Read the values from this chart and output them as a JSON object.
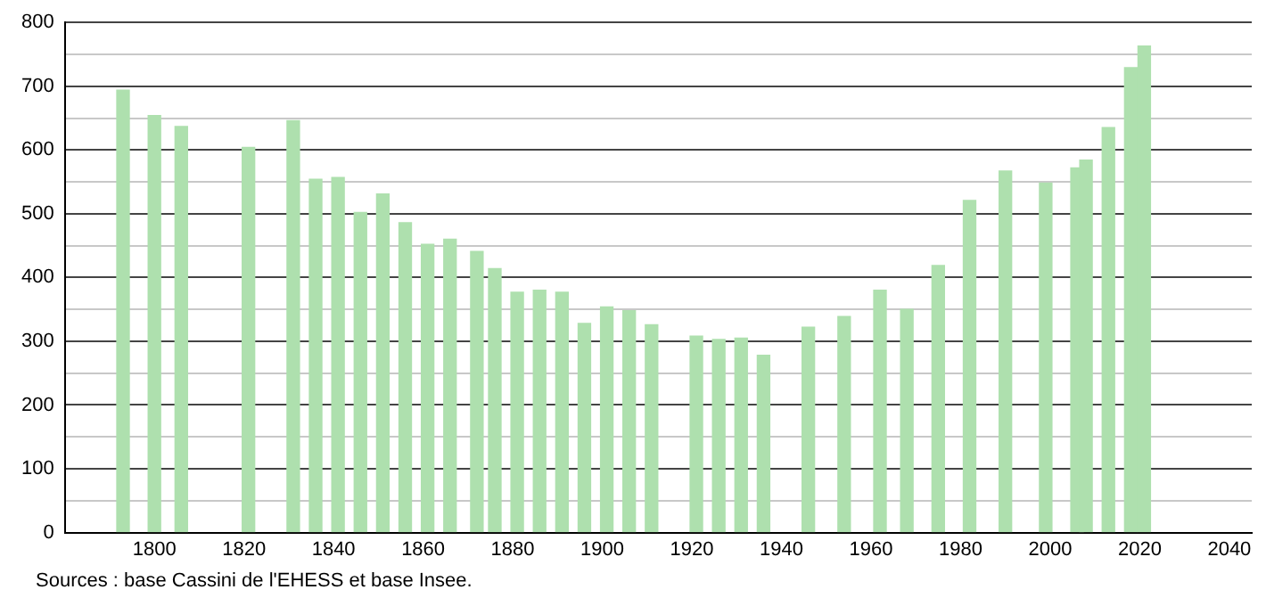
{
  "chart_data": {
    "type": "bar",
    "x": [
      1793,
      1800,
      1806,
      1821,
      1831,
      1836,
      1841,
      1846,
      1851,
      1856,
      1861,
      1866,
      1872,
      1876,
      1881,
      1886,
      1891,
      1896,
      1901,
      1906,
      1911,
      1921,
      1926,
      1931,
      1936,
      1946,
      1954,
      1962,
      1968,
      1975,
      1982,
      1990,
      1999,
      2006,
      2008,
      2013,
      2018,
      2021
    ],
    "values": [
      694,
      654,
      637,
      604,
      646,
      554,
      557,
      502,
      531,
      486,
      452,
      460,
      441,
      414,
      377,
      380,
      377,
      328,
      354,
      348,
      326,
      308,
      303,
      305,
      278,
      322,
      339,
      380,
      350,
      419,
      521,
      567,
      548,
      572,
      584,
      635,
      729,
      763
    ],
    "color": "#aee0ae",
    "xlim": [
      1780,
      2045
    ],
    "xticks": [
      1800,
      1820,
      1840,
      1860,
      1880,
      1900,
      1920,
      1940,
      1960,
      1980,
      2000,
      2020,
      2040
    ],
    "ylim": [
      0,
      800
    ],
    "yticks": [
      0,
      {
        "value": 50,
        "label": null
      },
      100,
      {
        "value": 150,
        "label": null
      },
      200,
      {
        "value": 250,
        "label": null
      },
      300,
      {
        "value": 350,
        "label": null
      },
      400,
      {
        "value": 450,
        "label": null
      },
      500,
      {
        "value": 550,
        "label": null
      },
      600,
      {
        "value": 650,
        "label": null
      },
      700,
      {
        "value": 750,
        "label": null
      },
      800
    ],
    "grid": "y",
    "legend": false,
    "annotations": [
      "Sources : base Cassini de l'EHESS et base Insee."
    ]
  }
}
